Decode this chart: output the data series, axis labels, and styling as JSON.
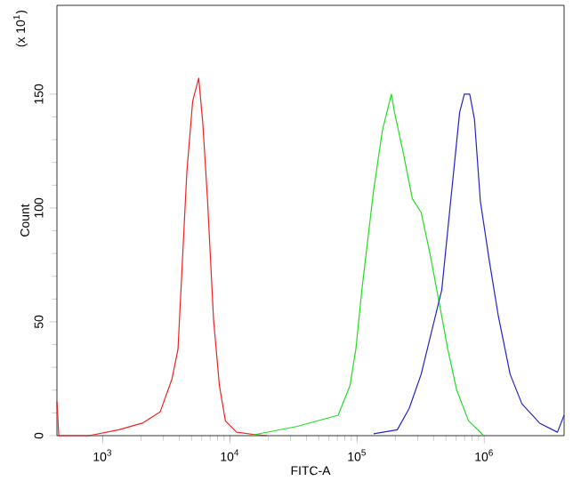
{
  "chart_data": {
    "type": "line",
    "xlabel": "FITC-A",
    "ylabel": "Count",
    "annotations": [
      "(x 10$^{1}$)"
    ],
    "log": "x",
    "xlim": [
      437,
      4240000
    ],
    "ylim": [
      0,
      189
    ],
    "xticks": [
      {
        "value": 1000,
        "label": "10$^{3}$"
      },
      {
        "value": 10000,
        "label": "10$^{4}$"
      },
      {
        "value": 100000,
        "label": "10$^{5}$"
      },
      {
        "value": 1000000,
        "label": "10$^{6}$"
      }
    ],
    "yticks": [
      0,
      50,
      100,
      150
    ],
    "series": [
      {
        "color": "#ee2222",
        "x": [
          437,
          452,
          780,
          1340,
          2050,
          2830,
          3510,
          3910,
          4590,
          5100,
          5690,
          6130,
          6680,
          7440,
          8270,
          9220,
          11300,
          15600,
          19500
        ],
        "values": [
          15,
          0,
          0,
          2.6,
          5.5,
          10.4,
          25,
          38,
          116,
          147,
          157,
          137,
          103,
          51,
          22,
          6.5,
          1.5,
          0.5,
          0
        ]
      },
      {
        "color": "#22dd22",
        "x": [
          14200,
          33400,
          71000,
          87900,
          97800,
          109000,
          135000,
          158000,
          186000,
          197000,
          231000,
          272000,
          319000,
          374000,
          440000,
          516000,
          607000,
          752000,
          931000,
          984000
        ],
        "values": [
          0,
          4,
          9,
          22,
          38,
          64,
          108,
          134,
          150,
          142,
          124,
          104,
          98,
          80,
          59,
          38,
          20,
          6.5,
          1.5,
          0
        ]
      },
      {
        "color": "#2222cc",
        "x": [
          135000,
          207000,
          257000,
          319000,
          394000,
          463000,
          544000,
          640000,
          697000,
          768000,
          837000,
          931000,
          1094000,
          1285000,
          1596000,
          1974000,
          2724000,
          3758000,
          4240000
        ],
        "values": [
          0.8,
          2.6,
          12,
          27,
          48,
          64,
          103,
          142,
          150,
          150,
          139,
          103,
          77,
          53,
          27,
          14,
          5.5,
          1.5,
          9
        ]
      }
    ]
  }
}
